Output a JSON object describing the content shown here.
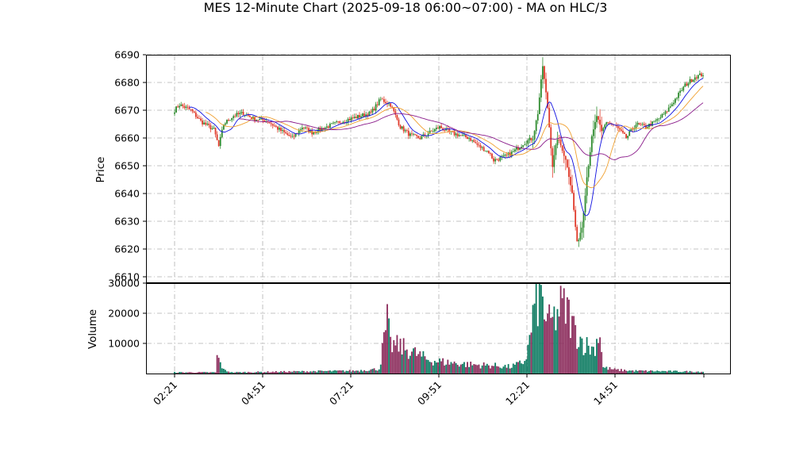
{
  "title": "MES 12-Minute Chart (2025-09-18 06:00~07:00) - MA on HLC/3",
  "colors": {
    "up": "#2e8b2e",
    "down": "#e03a2a",
    "ma_fast": "#1010e0",
    "ma_mid": "#f0a030",
    "ma_slow": "#8a1a8a",
    "vol_up": "#0b7a60",
    "vol_down": "#8a2a5a",
    "grid": "#b0b0b0"
  },
  "chart_data": [
    {
      "type": "candlestick",
      "ylabel": "Price",
      "ylim": [
        6608,
        6690
      ],
      "yticks": [
        "6610",
        "6620",
        "6630",
        "6640",
        "6650",
        "6660",
        "6670",
        "6680",
        "6690"
      ],
      "xticks": [
        "02:21",
        "04:51",
        "07:21",
        "09:51",
        "12:21",
        "14:51"
      ],
      "grid": true,
      "moving_averages": [
        "MA fast",
        "MA mid",
        "MA slow"
      ],
      "close_anchors": [
        [
          0,
          6670
        ],
        [
          3,
          6672
        ],
        [
          10,
          6670
        ],
        [
          16,
          6666
        ],
        [
          24,
          6663
        ],
        [
          27,
          6657
        ],
        [
          30,
          6665
        ],
        [
          36,
          6668
        ],
        [
          42,
          6669
        ],
        [
          48,
          6667
        ],
        [
          57,
          6666
        ],
        [
          64,
          6663
        ],
        [
          72,
          6660
        ],
        [
          78,
          6664
        ],
        [
          84,
          6662
        ],
        [
          93,
          6664
        ],
        [
          102,
          6666
        ],
        [
          114,
          6668
        ],
        [
          120,
          6669
        ],
        [
          126,
          6674
        ],
        [
          132,
          6672
        ],
        [
          138,
          6664
        ],
        [
          144,
          6661
        ],
        [
          150,
          6660
        ],
        [
          156,
          6662
        ],
        [
          162,
          6664
        ],
        [
          168,
          6662
        ],
        [
          174,
          6661
        ],
        [
          180,
          6660
        ],
        [
          186,
          6657
        ],
        [
          192,
          6655
        ],
        [
          195,
          6652
        ],
        [
          201,
          6653
        ],
        [
          207,
          6655
        ],
        [
          213,
          6658
        ],
        [
          219,
          6660
        ],
        [
          222,
          6669
        ],
        [
          225,
          6686
        ],
        [
          228,
          6671
        ],
        [
          231,
          6650
        ],
        [
          234,
          6660
        ],
        [
          237,
          6656
        ],
        [
          240,
          6650
        ],
        [
          243,
          6640
        ],
        [
          246,
          6622
        ],
        [
          249,
          6628
        ],
        [
          252,
          6646
        ],
        [
          255,
          6660
        ],
        [
          258,
          6668
        ],
        [
          261,
          6662
        ],
        [
          264,
          6666
        ],
        [
          270,
          6664
        ],
        [
          276,
          6660
        ],
        [
          282,
          6665
        ],
        [
          288,
          6664
        ],
        [
          294,
          6666
        ],
        [
          300,
          6669
        ],
        [
          306,
          6674
        ],
        [
          312,
          6679
        ],
        [
          318,
          6682
        ],
        [
          323,
          6683
        ]
      ],
      "bar_count": 324
    },
    {
      "type": "bar",
      "ylabel": "Volume",
      "ylim": [
        0,
        30000
      ],
      "yticks": [
        "10000",
        "20000",
        "30000"
      ],
      "volume_anchors": [
        [
          0,
          400
        ],
        [
          25,
          400
        ],
        [
          26,
          5500
        ],
        [
          28,
          3500
        ],
        [
          30,
          1200
        ],
        [
          35,
          400
        ],
        [
          110,
          900
        ],
        [
          125,
          1500
        ],
        [
          130,
          17000
        ],
        [
          132,
          9500
        ],
        [
          138,
          9000
        ],
        [
          142,
          8000
        ],
        [
          148,
          6500
        ],
        [
          155,
          4500
        ],
        [
          165,
          3800
        ],
        [
          180,
          3000
        ],
        [
          200,
          2500
        ],
        [
          205,
          2200
        ],
        [
          210,
          3000
        ],
        [
          214,
          4200
        ],
        [
          216,
          8000
        ],
        [
          220,
          22000
        ],
        [
          224,
          26000
        ],
        [
          228,
          16000
        ],
        [
          232,
          18000
        ],
        [
          236,
          22000
        ],
        [
          240,
          21000
        ],
        [
          244,
          15000
        ],
        [
          250,
          10000
        ],
        [
          256,
          8000
        ],
        [
          260,
          14000
        ],
        [
          262,
          2000
        ],
        [
          270,
          1200
        ],
        [
          280,
          900
        ],
        [
          323,
          600
        ]
      ]
    }
  ]
}
